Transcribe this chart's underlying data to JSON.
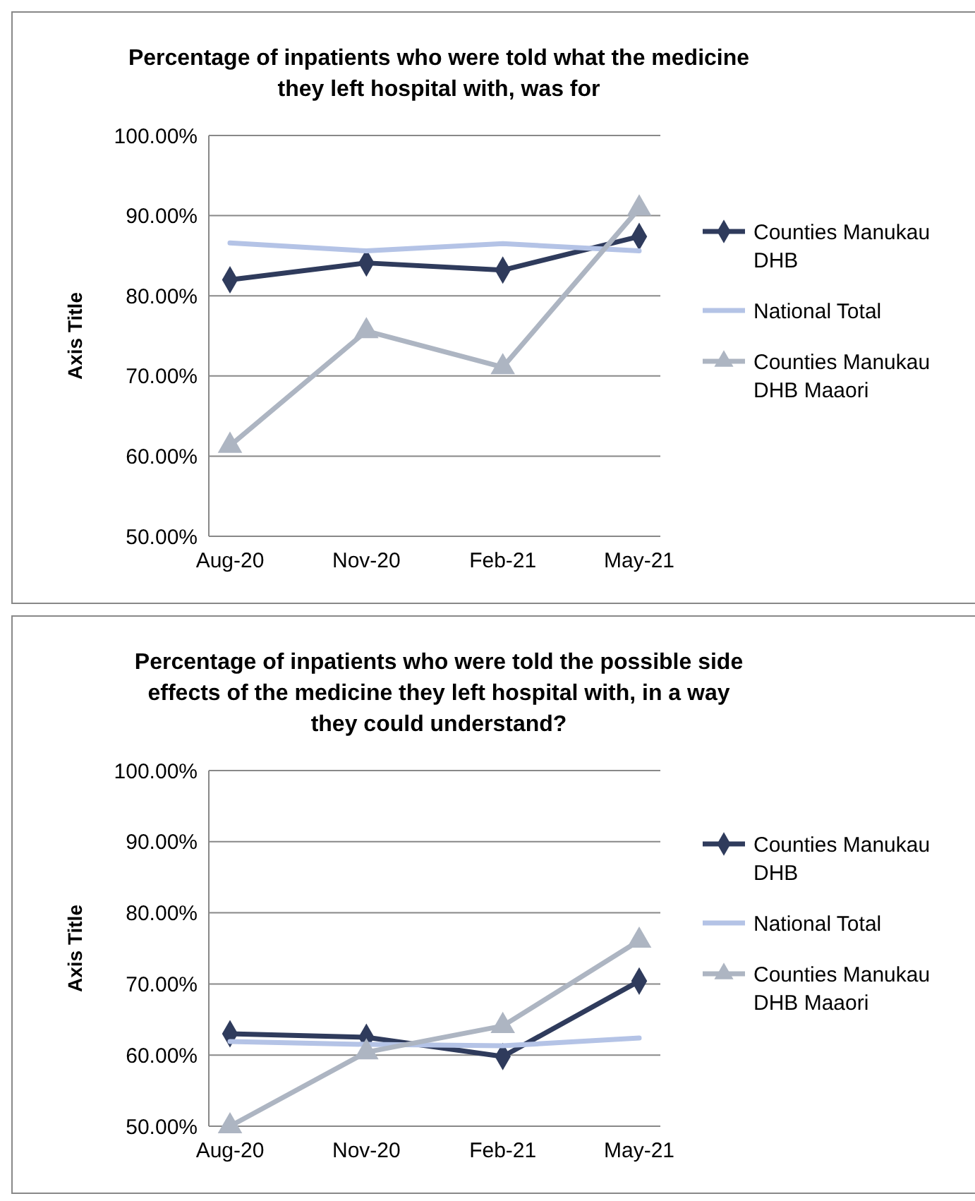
{
  "chart_data": [
    {
      "type": "line",
      "title": "Percentage of inpatients who were told what the medicine they left hospital with, was for",
      "ylabel": "Axis Title",
      "categories": [
        "Aug-20",
        "Nov-20",
        "Feb-21",
        "May-21"
      ],
      "ylim": [
        50,
        100
      ],
      "yticks": [
        {
          "value": 50,
          "label": "50.00%"
        },
        {
          "value": 60,
          "label": "60.00%"
        },
        {
          "value": 70,
          "label": "70.00%"
        },
        {
          "value": 80,
          "label": "80.00%"
        },
        {
          "value": 90,
          "label": "90.00%"
        },
        {
          "value": 100,
          "label": "100.00%"
        }
      ],
      "grid": "y",
      "legend": "right",
      "series": [
        {
          "name": "Counties Manukau DHB",
          "color": "#2f3b5c",
          "marker": "diamond",
          "values": [
            82.0,
            84.1,
            83.2,
            87.4
          ]
        },
        {
          "name": "National Total",
          "color": "#b4c3e6",
          "marker": "none",
          "values": [
            86.6,
            85.6,
            86.5,
            85.6
          ]
        },
        {
          "name": "Counties Manukau DHB Maaori",
          "color": "#adb5c2",
          "marker": "triangle",
          "values": [
            61.3,
            75.6,
            71.1,
            90.9
          ]
        }
      ]
    },
    {
      "type": "line",
      "title": "Percentage of inpatients who were told the possible side effects of the medicine they left hospital with, in a way they could understand?",
      "ylabel": "Axis Title",
      "categories": [
        "Aug-20",
        "Nov-20",
        "Feb-21",
        "May-21"
      ],
      "ylim": [
        50,
        100
      ],
      "yticks": [
        {
          "value": 50,
          "label": "50.00%"
        },
        {
          "value": 60,
          "label": "60.00%"
        },
        {
          "value": 70,
          "label": "70.00%"
        },
        {
          "value": 80,
          "label": "80.00%"
        },
        {
          "value": 90,
          "label": "90.00%"
        },
        {
          "value": 100,
          "label": "100.00%"
        }
      ],
      "grid": "y",
      "legend": "right",
      "series": [
        {
          "name": "Counties Manukau DHB",
          "color": "#2f3b5c",
          "marker": "diamond",
          "values": [
            63.0,
            62.5,
            59.8,
            70.4
          ]
        },
        {
          "name": "National Total",
          "color": "#b4c3e6",
          "marker": "none",
          "values": [
            61.9,
            61.5,
            61.3,
            62.4
          ]
        },
        {
          "name": "Counties Manukau DHB Maaori",
          "color": "#adb5c2",
          "marker": "triangle",
          "values": [
            50.0,
            60.4,
            64.1,
            76.1
          ]
        }
      ]
    }
  ]
}
